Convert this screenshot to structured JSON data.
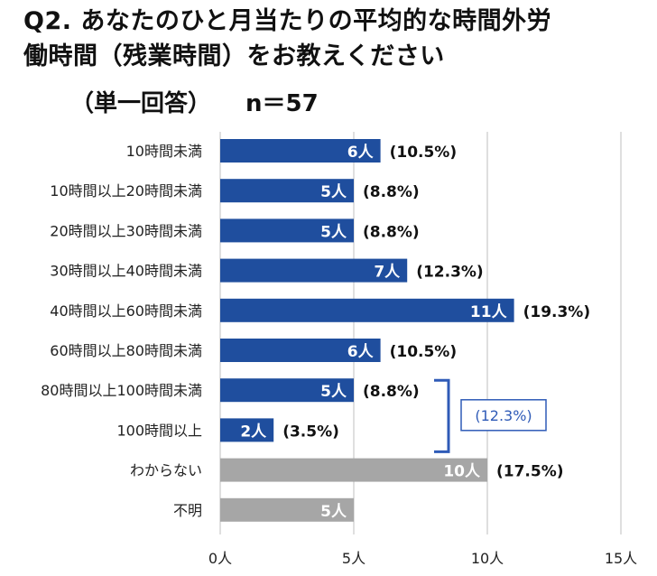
{
  "title": {
    "line1": "Q2. あなたのひと月当たりの平均的な時間外労",
    "line2": "働時間（残業時間）をお教えください"
  },
  "subtitle": {
    "answer_type": "（単一回答）",
    "n": "n＝57"
  },
  "bracket_total": "(12.3%)",
  "colors": {
    "blue": "#1f4e9e",
    "gray": "#a6a6a6",
    "grid": "#bfbfbf",
    "bracket": "#2f5bb7"
  },
  "chart_data": {
    "type": "bar",
    "orientation": "horizontal",
    "categories": [
      "10時間未満",
      "10時間以上20時間未満",
      "20時間以上30時間未満",
      "30時間以上40時間未満",
      "40時間以上60時間未満",
      "60時間以上80時間未満",
      "80時間以上100時間未満",
      "100時間以上",
      "わからない",
      "不明"
    ],
    "values": [
      6,
      5,
      5,
      7,
      11,
      6,
      5,
      2,
      10,
      5
    ],
    "value_labels": [
      "6人",
      "5人",
      "5人",
      "7人",
      "11人",
      "6人",
      "5人",
      "2人",
      "10人",
      "5人"
    ],
    "percent_labels": [
      "(10.5%)",
      "(8.8%)",
      "(8.8%)",
      "(12.3%)",
      "(19.3%)",
      "(10.5%)",
      "(8.8%)",
      "(3.5%)",
      "(17.5%)",
      ""
    ],
    "bar_colors": [
      "blue",
      "blue",
      "blue",
      "blue",
      "blue",
      "blue",
      "blue",
      "blue",
      "gray",
      "gray"
    ],
    "x_ticks": [
      0,
      5,
      10,
      15
    ],
    "x_tick_labels": [
      "0人",
      "5人",
      "10人",
      "15人"
    ],
    "xlim": [
      0,
      15
    ],
    "grid": true
  }
}
